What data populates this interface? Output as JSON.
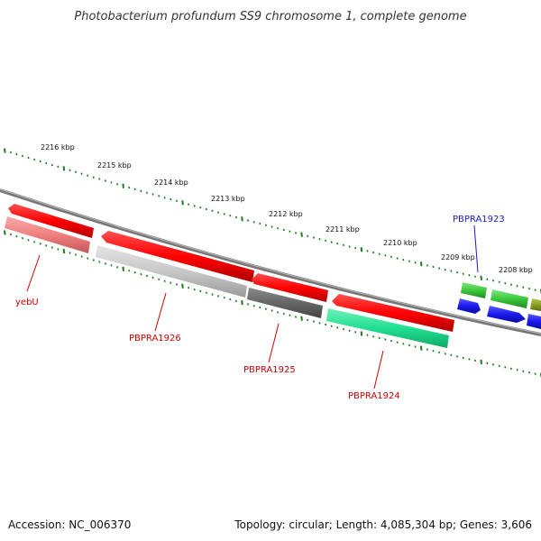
{
  "title": "Photobacterium profundum SS9 chromosome 1, complete genome",
  "footer": {
    "accession": "Accession: NC_006370",
    "summary": "Topology: circular; Length: 4,085,304 bp; Genes: 3,606"
  },
  "ruler": {
    "tick_color": "#1f7a1f",
    "labels": [
      "2216 kbp",
      "2215 kbp",
      "2214 kbp",
      "2213 kbp",
      "2212 kbp",
      "2211 kbp",
      "2210 kbp",
      "2209 kbp",
      "2208 kbp"
    ]
  },
  "genes": [
    {
      "name": "yebU",
      "color": "#cc0000"
    },
    {
      "name": "PBPRA1926",
      "color": "#cc0000"
    },
    {
      "name": "PBPRA1925",
      "color": "#cc0000"
    },
    {
      "name": "PBPRA1924",
      "color": "#cc0000"
    },
    {
      "name": "PBPRA1923",
      "color": "#1a1acc"
    }
  ],
  "colors": {
    "forward_gene": "#ff1010",
    "backbone": "#777777",
    "light_red": "#f08080",
    "light_grey": "#c8c8c8",
    "dark_grey": "#666666",
    "teal": "#20e090",
    "green": "#3cc83c",
    "blue": "#1a1aee",
    "olive": "#8aa020"
  }
}
